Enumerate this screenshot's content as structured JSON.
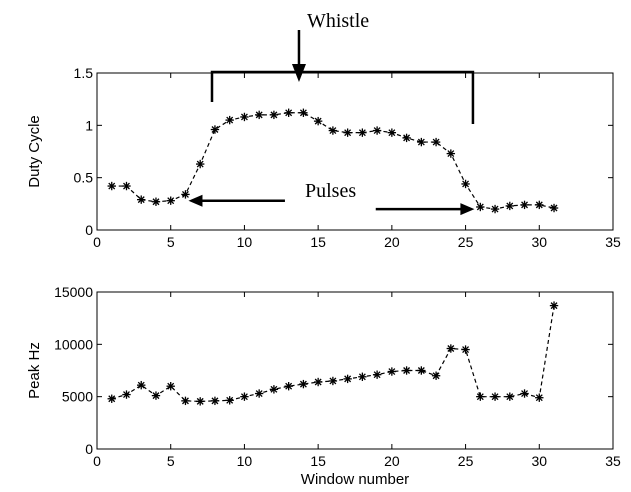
{
  "chart_data": [
    {
      "type": "line",
      "title": "",
      "xlabel": "",
      "ylabel": "Duty Cycle",
      "xlim": [
        0,
        35
      ],
      "ylim": [
        0,
        1.5
      ],
      "xticks": [
        0,
        5,
        10,
        15,
        20,
        25,
        30,
        35
      ],
      "yticks": [
        0,
        0.5,
        1,
        1.5
      ],
      "ytick_labels": [
        "0",
        "0.5",
        "1",
        "1.5"
      ],
      "marker": "asterisk",
      "line_style": "dashed",
      "series": [
        {
          "x": [
            1,
            2,
            3,
            4,
            5,
            6,
            7,
            8,
            9,
            10,
            11,
            12,
            13,
            14,
            15,
            16,
            17,
            18,
            19,
            20,
            21,
            22,
            23,
            24,
            25,
            26,
            27,
            28,
            29,
            30,
            31
          ],
          "values": [
            0.42,
            0.42,
            0.29,
            0.27,
            0.28,
            0.34,
            0.63,
            0.96,
            1.05,
            1.08,
            1.1,
            1.1,
            1.12,
            1.12,
            1.04,
            0.95,
            0.93,
            0.93,
            0.95,
            0.93,
            0.88,
            0.84,
            0.84,
            0.73,
            0.44,
            0.22,
            0.2,
            0.23,
            0.24,
            0.24,
            0.21
          ]
        }
      ],
      "annotations": {
        "whistle": {
          "text": "Whistle",
          "arrow_x": 13.7,
          "bracket_x": [
            7.8,
            25.5
          ],
          "bracket_y": 1.5
        },
        "pulses": {
          "text": "Pulses",
          "left_arrow": [
            8,
            6
          ],
          "right_arrow": [
            18.5,
            25.6
          ],
          "arrow_y": 0.28
        }
      }
    },
    {
      "type": "line",
      "title": "",
      "xlabel": "Window number",
      "ylabel": "Peak Hz",
      "xlim": [
        0,
        35
      ],
      "ylim": [
        0,
        15000
      ],
      "xticks": [
        0,
        5,
        10,
        15,
        20,
        25,
        30,
        35
      ],
      "yticks": [
        0,
        5000,
        10000,
        15000
      ],
      "ytick_labels": [
        "0",
        "5000",
        "10000",
        "15000"
      ],
      "marker": "asterisk",
      "line_style": "dashed",
      "series": [
        {
          "x": [
            1,
            2,
            3,
            4,
            5,
            6,
            7,
            8,
            9,
            10,
            11,
            12,
            13,
            14,
            15,
            16,
            17,
            18,
            19,
            20,
            21,
            22,
            23,
            24,
            25,
            26,
            27,
            28,
            29,
            30,
            31
          ],
          "values": [
            4800,
            5200,
            6100,
            5100,
            6000,
            4600,
            4550,
            4600,
            4650,
            5000,
            5300,
            5700,
            6000,
            6200,
            6400,
            6500,
            6700,
            6900,
            7100,
            7400,
            7500,
            7500,
            7000,
            9600,
            9500,
            5000,
            5000,
            5000,
            5300,
            4900,
            13700
          ]
        }
      ]
    }
  ]
}
